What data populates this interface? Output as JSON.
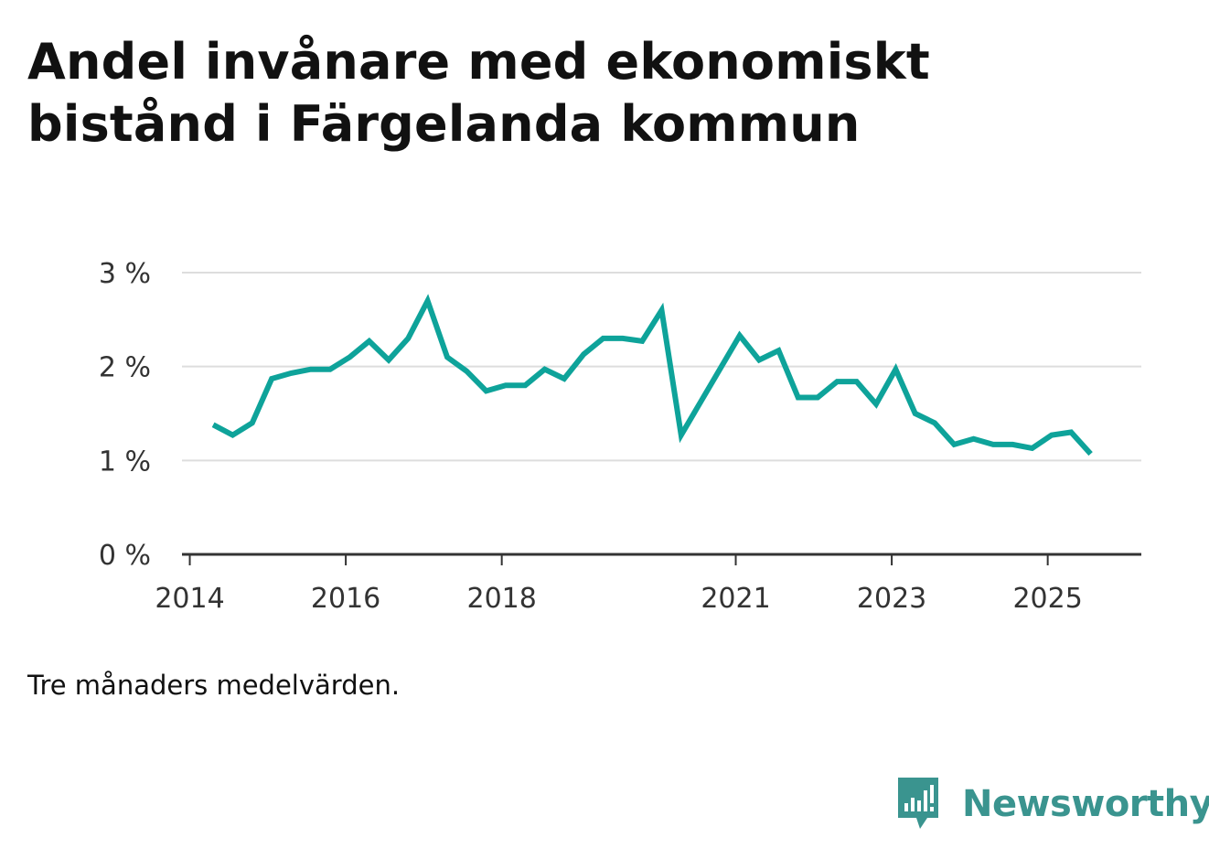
{
  "header": {
    "title": "Andel invånare med ekonomiskt bistånd i Färgelanda kommun"
  },
  "note": "Tre månaders medelvärden.",
  "logo": {
    "text": "Newsworthy",
    "icon": "bar-chart-speech-bubble-icon",
    "color": "#3a948f"
  },
  "colors": {
    "line": "#0ea39a",
    "grid": "#dddddd",
    "axis": "#333333"
  },
  "chart_data": {
    "type": "line",
    "title": "Andel invånare med ekonomiskt bistånd i Färgelanda kommun",
    "xlabel": "",
    "ylabel": "",
    "ylim": [
      0,
      3
    ],
    "xlim": [
      2013.9,
      2026.2
    ],
    "grid": true,
    "y_ticks": [
      {
        "value": 0,
        "label": "0 %"
      },
      {
        "value": 1,
        "label": "1 %"
      },
      {
        "value": 2,
        "label": "2 %"
      },
      {
        "value": 3,
        "label": "3 %"
      }
    ],
    "x_ticks": [
      {
        "value": 2014,
        "label": "2014"
      },
      {
        "value": 2016,
        "label": "2016"
      },
      {
        "value": 2018,
        "label": "2018"
      },
      {
        "value": 2021,
        "label": "2021"
      },
      {
        "value": 2023,
        "label": "2023"
      },
      {
        "value": 2025,
        "label": "2025"
      }
    ],
    "series": [
      {
        "name": "Andel invånare med ekonomiskt bistånd",
        "x": [
          2014.3,
          2014.55,
          2014.8,
          2015.05,
          2015.3,
          2015.55,
          2015.8,
          2016.05,
          2016.3,
          2016.55,
          2016.8,
          2017.05,
          2017.3,
          2017.55,
          2017.8,
          2018.05,
          2018.3,
          2018.55,
          2018.8,
          2019.05,
          2019.3,
          2019.55,
          2019.8,
          2020.05,
          2020.3,
          2021.05,
          2021.3,
          2021.55,
          2021.8,
          2022.05,
          2022.3,
          2022.55,
          2022.8,
          2023.05,
          2023.3,
          2023.55,
          2023.8,
          2024.05,
          2024.3,
          2024.55,
          2024.8,
          2025.05,
          2025.3,
          2025.55
        ],
        "values": [
          1.38,
          1.27,
          1.4,
          1.87,
          1.93,
          1.97,
          1.97,
          2.1,
          2.27,
          2.07,
          2.3,
          2.7,
          2.1,
          1.95,
          1.74,
          1.8,
          1.8,
          1.97,
          1.87,
          2.13,
          2.3,
          2.3,
          2.27,
          2.6,
          1.27,
          2.33,
          2.07,
          2.17,
          1.67,
          1.67,
          1.84,
          1.84,
          1.6,
          1.97,
          1.5,
          1.4,
          1.17,
          1.23,
          1.17,
          1.17,
          1.13,
          1.27,
          1.3,
          1.07
        ]
      }
    ]
  }
}
